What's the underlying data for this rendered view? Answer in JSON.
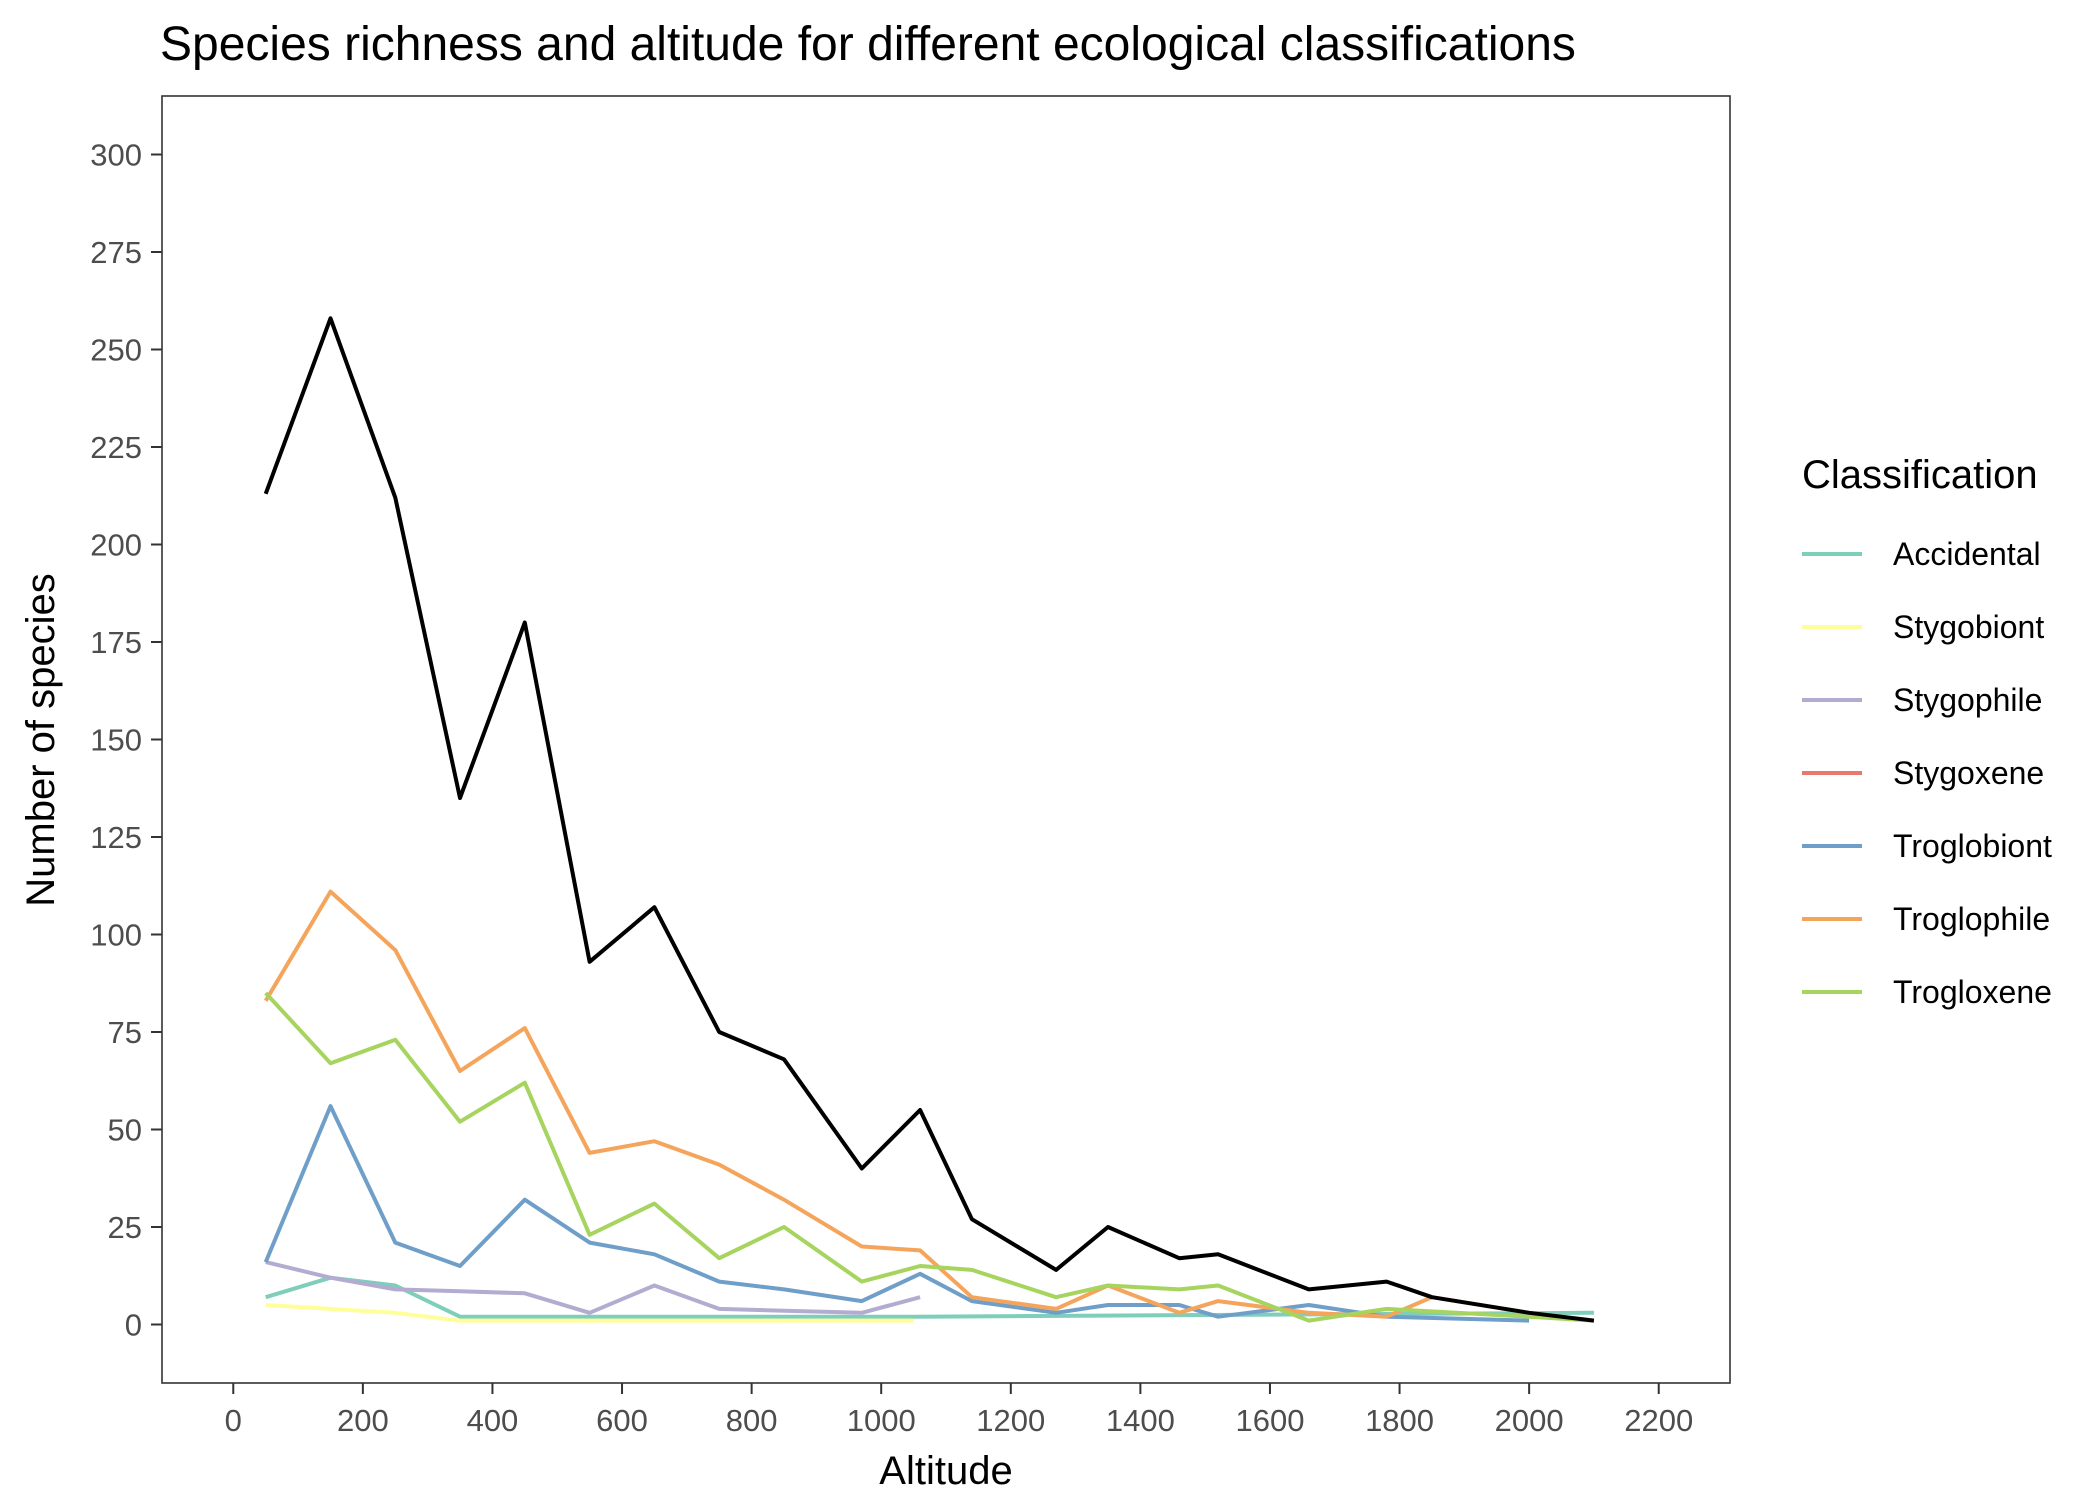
{
  "chart_data": {
    "type": "line",
    "title": "Species richness and altitude for different ecological classifications",
    "xlabel": "Altitude",
    "ylabel": "Number of species",
    "xlim": [
      -110,
      2310
    ],
    "ylim": [
      -15,
      315
    ],
    "x_ticks": [
      0,
      200,
      400,
      600,
      800,
      1000,
      1200,
      1400,
      1600,
      1800,
      2000,
      2200
    ],
    "y_ticks": [
      0,
      25,
      50,
      75,
      100,
      125,
      150,
      175,
      200,
      225,
      250,
      275,
      300
    ],
    "grid": false,
    "legend_position": "right",
    "legend_title": "Classification",
    "series": [
      {
        "name": "Accidental",
        "color": "#7fcdbb",
        "x": [
          50,
          150,
          250,
          350,
          1050,
          2100
        ],
        "y": [
          7,
          12,
          10,
          2,
          2,
          3
        ]
      },
      {
        "name": "Stygobiont",
        "color": "#ffff99",
        "x": [
          50,
          250,
          350,
          650,
          1050
        ],
        "y": [
          5,
          3,
          1,
          1,
          1
        ]
      },
      {
        "name": "Stygophile",
        "color": "#b3acd1",
        "x": [
          50,
          150,
          250,
          350,
          450,
          550,
          650,
          750,
          850,
          970,
          1060
        ],
        "y": [
          16,
          12,
          9,
          8.5,
          8,
          3,
          10,
          4,
          3.5,
          3,
          7
        ]
      },
      {
        "name": "Stygoxene",
        "color": "#e9776a",
        "x": [],
        "y": []
      },
      {
        "name": "Troglobiont",
        "color": "#6f9fc8",
        "x": [
          50,
          150,
          250,
          350,
          450,
          550,
          650,
          750,
          850,
          970,
          1060,
          1140,
          1270,
          1350,
          1460,
          1520,
          1660,
          1780,
          2000
        ],
        "y": [
          16,
          56,
          21,
          15,
          32,
          21,
          18,
          11,
          9,
          6,
          13,
          6,
          3,
          5,
          5,
          2,
          5,
          2,
          1
        ]
      },
      {
        "name": "Troglophile",
        "color": "#f5a55b",
        "x": [
          50,
          150,
          250,
          350,
          450,
          550,
          650,
          750,
          850,
          970,
          1060,
          1140,
          1270,
          1350,
          1460,
          1520,
          1660,
          1780,
          1850,
          2000,
          2100
        ],
        "y": [
          83,
          111,
          96,
          65,
          76,
          44,
          47,
          41,
          32,
          20,
          19,
          7,
          4,
          10,
          3,
          6,
          3,
          2,
          7,
          3,
          1
        ]
      },
      {
        "name": "Trogloxene",
        "color": "#a6d45f",
        "x": [
          50,
          150,
          250,
          350,
          450,
          550,
          650,
          750,
          850,
          970,
          1060,
          1140,
          1270,
          1350,
          1460,
          1520,
          1660,
          1780,
          2000,
          2100
        ],
        "y": [
          85,
          67,
          73,
          52,
          62,
          23,
          31,
          17,
          25,
          11,
          15,
          14,
          7,
          10,
          9,
          10,
          1,
          4,
          2,
          1
        ]
      },
      {
        "color": "#000000",
        "x": [
          50,
          150,
          250,
          350,
          450,
          550,
          650,
          750,
          850,
          970,
          1060,
          1140,
          1270,
          1350,
          1460,
          1520,
          1660,
          1780,
          1850,
          2000,
          2100
        ],
        "y": [
          213,
          258,
          212,
          135,
          180,
          93,
          107,
          75,
          68,
          40,
          55,
          27,
          14,
          25,
          17,
          18,
          9,
          11,
          7,
          3,
          1
        ]
      }
    ]
  }
}
